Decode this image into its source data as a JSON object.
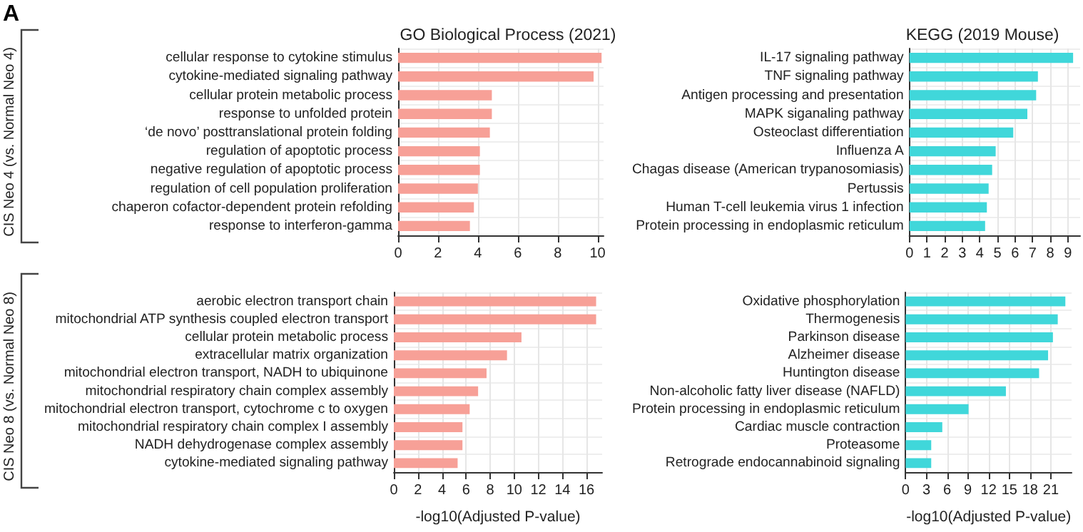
{
  "chart_data": [
    {
      "type": "bar",
      "orientation": "horizontal",
      "title": "GO Biological Process (2021)",
      "categories": [
        "cellular response to cytokine stimulus",
        "cytokine-mediated signaling pathway",
        "cellular protein metabolic process",
        "response to unfolded protein",
        "‘de novo’ posttranslational protein folding",
        "regulation of apoptotic process",
        "negative regulation of apoptotic process",
        "regulation of cell population proliferation",
        "chaperon cofactor-dependent protein refolding",
        "response to interferon-gamma"
      ],
      "values": [
        10.2,
        9.8,
        4.7,
        4.7,
        4.6,
        4.1,
        4.1,
        4.0,
        3.8,
        3.6
      ],
      "color": "#f7a097",
      "xlim": [
        0,
        10.3
      ],
      "xticks": [
        0,
        2,
        4,
        6,
        8,
        10
      ],
      "grid": true,
      "annotations": [
        "A",
        "CIS Neo 4 (vs. Normal Neo 4)"
      ]
    },
    {
      "type": "bar",
      "orientation": "horizontal",
      "title": "KEGG (2019 Mouse)",
      "categories": [
        "IL-17 signaling pathway",
        "TNF signaling pathway",
        "Antigen processing and presentation",
        "MAPK siganaling pathway",
        "Osteoclast differentiation",
        "Influenza A",
        "Chagas disease (American trypanosomiasis)",
        "Pertussis",
        "Human T-cell leukemia virus 1 infection",
        "Protein processing in endoplasmic reticulum"
      ],
      "values": [
        9.3,
        7.3,
        7.2,
        6.7,
        5.9,
        4.9,
        4.7,
        4.5,
        4.4,
        4.3
      ],
      "color": "#40d7da",
      "xlim": [
        0,
        9.7
      ],
      "xticks": [
        0,
        1,
        2,
        3,
        4,
        5,
        6,
        7,
        8,
        9
      ],
      "grid": true
    },
    {
      "type": "bar",
      "orientation": "horizontal",
      "xlabel": "-log10(Adjusted P-value)",
      "categories": [
        "aerobic electron transport chain",
        "mitochondrial ATP synthesis coupled electron transport",
        "cellular protein metabolic process",
        "extracellular matrix organization",
        "mitochondrial electron transport, NADH to ubiquinone",
        "mitochondrial respiratory chain complex assembly",
        "mitochondrial electron transport, cytochrome c to oxygen",
        "mitochondrial respiratory chain complex I assembly",
        "NADH dehydrogenase complex assembly",
        "cytokine-mediated signaling pathway"
      ],
      "values": [
        16.8,
        16.8,
        10.6,
        9.4,
        7.7,
        7.0,
        6.3,
        5.7,
        5.7,
        5.3
      ],
      "color": "#f7a097",
      "xlim": [
        0,
        17.3
      ],
      "xticks": [
        0,
        2,
        4,
        6,
        8,
        10,
        12,
        14,
        16
      ],
      "grid": true,
      "annotations": [
        "CIS Neo 8 (vs. Normal Neo 8)"
      ]
    },
    {
      "type": "bar",
      "orientation": "horizontal",
      "xlabel": "-log10(Adjusted P-value)",
      "categories": [
        "Oxidative phosphorylation",
        "Thermogenesis",
        "Parkinson disease",
        "Alzheimer disease",
        "Huntington disease",
        "Non-alcoholic fatty liver disease (NAFLD)",
        "Protein processing in endoplasmic reticulum",
        "Cardiac muscle contraction",
        "Proteasome",
        "Retrograde endocannabinoid signaling"
      ],
      "values": [
        23.1,
        22.0,
        21.3,
        20.6,
        19.3,
        14.5,
        9.1,
        5.3,
        3.7,
        3.7
      ],
      "color": "#40d7da",
      "xlim": [
        0,
        24
      ],
      "xticks": [
        0,
        3,
        6,
        9,
        12,
        15,
        18,
        21
      ],
      "grid": true
    }
  ]
}
